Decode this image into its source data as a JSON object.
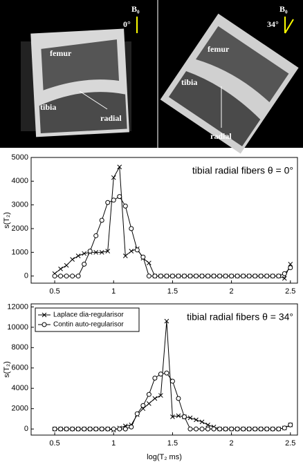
{
  "images": [
    {
      "field_label": "B₀",
      "angle": "0°",
      "labels": [
        "femur",
        "tibia",
        "radial"
      ]
    },
    {
      "field_label": "B₀",
      "angle": "34°",
      "labels": [
        "femur",
        "tibia",
        "radial"
      ]
    }
  ],
  "chart_data": [
    {
      "type": "line",
      "title": "tibial radial fibers θ = 0°",
      "y_label": "s(T₂)",
      "x": [
        0.5,
        0.55,
        0.6,
        0.65,
        0.7,
        0.75,
        0.8,
        0.85,
        0.9,
        0.95,
        1.0,
        1.05,
        1.1,
        1.15,
        1.2,
        1.25,
        1.3,
        1.35,
        1.4,
        1.45,
        1.5,
        1.55,
        1.6,
        1.65,
        1.7,
        1.75,
        1.8,
        1.85,
        1.9,
        1.95,
        2.0,
        2.05,
        2.1,
        2.15,
        2.2,
        2.25,
        2.3,
        2.35,
        2.4,
        2.45,
        2.5
      ],
      "series": [
        {
          "name": "Laplace dia-regularisor",
          "color": "#000000",
          "marker": "x",
          "values": [
            100,
            300,
            450,
            700,
            850,
            950,
            1000,
            1000,
            1000,
            1050,
            4150,
            4600,
            850,
            1050,
            1150,
            750,
            550,
            0,
            0,
            0,
            0,
            0,
            0,
            0,
            0,
            0,
            0,
            0,
            0,
            0,
            0,
            0,
            0,
            0,
            0,
            0,
            0,
            0,
            0,
            -100,
            500
          ]
        },
        {
          "name": "Contin auto-regularisor",
          "color": "#000000",
          "marker": "o",
          "values": [
            0,
            0,
            0,
            0,
            0,
            500,
            1050,
            1700,
            2350,
            3100,
            3200,
            3350,
            2950,
            2000,
            1100,
            800,
            0,
            0,
            0,
            0,
            0,
            0,
            0,
            0,
            0,
            0,
            0,
            0,
            0,
            0,
            0,
            0,
            0,
            0,
            0,
            0,
            0,
            0,
            0,
            100,
            350
          ]
        }
      ],
      "xlim": [
        0.3,
        2.56
      ],
      "xticks": [
        0.5,
        1,
        1.5,
        2,
        2.5
      ],
      "ylim": [
        -300,
        5000
      ],
      "yticks": [
        0,
        1000,
        2000,
        3000,
        4000,
        5000
      ],
      "legend": false
    },
    {
      "type": "line",
      "title": "tibial radial fibers θ = 34°",
      "y_label": "s(T₂)",
      "x_label": "log(T₂ ms)",
      "x": [
        0.5,
        0.55,
        0.6,
        0.65,
        0.7,
        0.75,
        0.8,
        0.85,
        0.9,
        0.95,
        1.0,
        1.05,
        1.1,
        1.15,
        1.2,
        1.25,
        1.3,
        1.35,
        1.4,
        1.45,
        1.5,
        1.55,
        1.6,
        1.65,
        1.7,
        1.75,
        1.8,
        1.85,
        1.9,
        1.95,
        2.0,
        2.05,
        2.1,
        2.15,
        2.2,
        2.25,
        2.3,
        2.35,
        2.4,
        2.45,
        2.5
      ],
      "series": [
        {
          "name": "Laplace dia-regularisor",
          "color": "#000000",
          "marker": "x",
          "values": [
            0,
            0,
            0,
            0,
            0,
            0,
            0,
            0,
            0,
            0,
            -100,
            100,
            300,
            400,
            1400,
            2000,
            2500,
            3000,
            3300,
            10600,
            1200,
            1300,
            1200,
            1100,
            900,
            700,
            400,
            200,
            0,
            0,
            0,
            0,
            0,
            0,
            0,
            0,
            0,
            0,
            0,
            100,
            400
          ]
        },
        {
          "name": "Contin auto-regularisor",
          "color": "#000000",
          "marker": "o",
          "values": [
            0,
            0,
            0,
            0,
            0,
            0,
            0,
            0,
            0,
            0,
            0,
            0,
            0,
            200,
            1500,
            2300,
            3400,
            5000,
            5400,
            5500,
            4700,
            3000,
            1200,
            0,
            0,
            0,
            0,
            0,
            0,
            0,
            0,
            0,
            0,
            0,
            0,
            0,
            0,
            0,
            0,
            100,
            400
          ]
        }
      ],
      "xlim": [
        0.3,
        2.56
      ],
      "xticks": [
        0.5,
        1,
        1.5,
        2,
        2.5
      ],
      "ylim": [
        -600,
        12300
      ],
      "yticks": [
        0,
        2000,
        4000,
        6000,
        8000,
        10000,
        12000
      ],
      "legend": "upper left"
    }
  ]
}
